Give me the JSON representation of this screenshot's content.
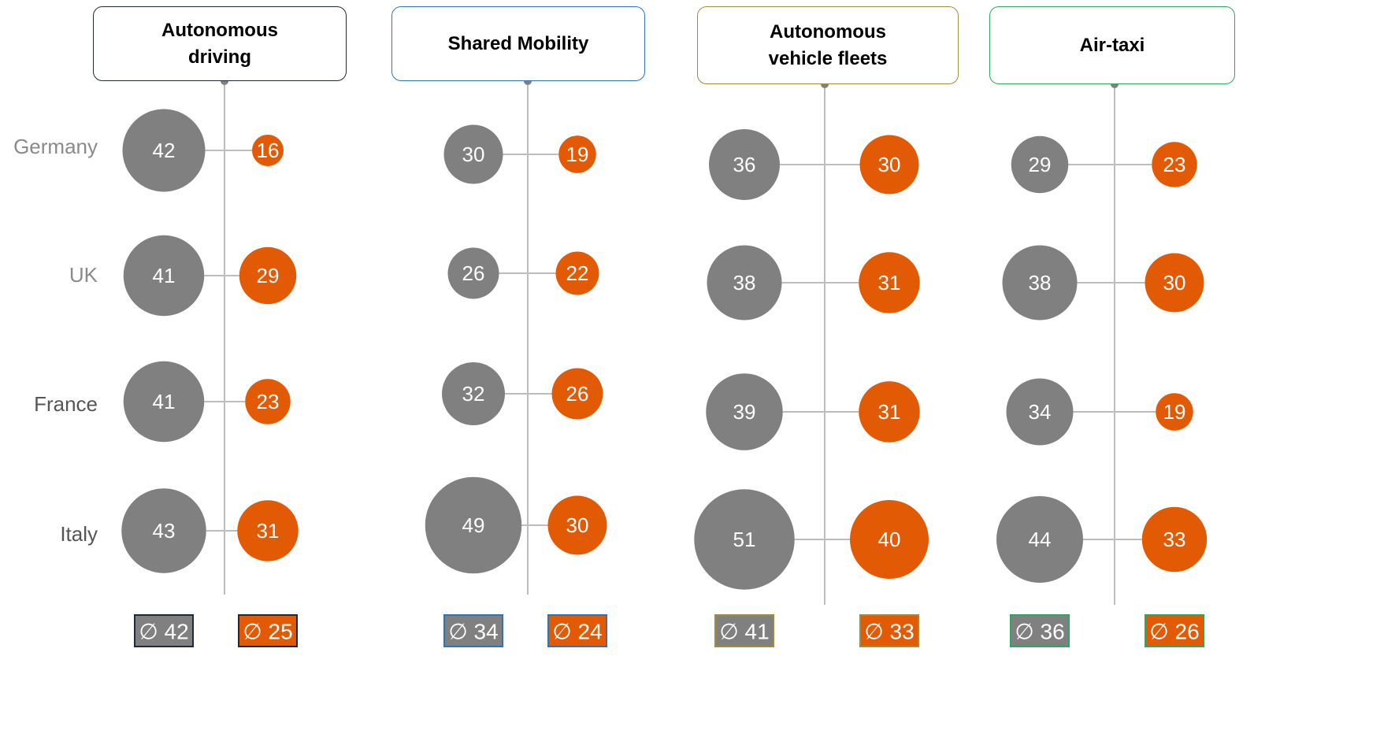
{
  "chart_data": {
    "type": "bubble",
    "categories": [
      "Germany",
      "UK",
      "France",
      "Italy"
    ],
    "panels": [
      {
        "title": "Autonomous driving",
        "color": "#1f2a38",
        "series": [
          {
            "color": "#808080",
            "values": [
              42,
              41,
              41,
              43
            ]
          },
          {
            "color": "#e35a05",
            "values": [
              16,
              29,
              23,
              31
            ]
          }
        ],
        "averages": [
          42,
          25
        ],
        "average_labels": [
          "∅ 42",
          "∅ 25"
        ]
      },
      {
        "title": "Shared Mobility",
        "color": "#2e75b6",
        "series": [
          {
            "color": "#808080",
            "values": [
              30,
              26,
              32,
              49
            ]
          },
          {
            "color": "#e35a05",
            "values": [
              19,
              22,
              26,
              30
            ]
          }
        ],
        "averages": [
          34,
          24
        ],
        "average_labels": [
          "∅ 34",
          "∅ 24"
        ]
      },
      {
        "title": "Autonomous vehicle fleets",
        "color": "#a08c3c",
        "series": [
          {
            "color": "#808080",
            "values": [
              36,
              38,
              39,
              51
            ]
          },
          {
            "color": "#e35a05",
            "values": [
              30,
              31,
              31,
              40
            ]
          }
        ],
        "averages": [
          41,
          33
        ],
        "average_labels": [
          "∅ 41",
          "∅ 33"
        ]
      },
      {
        "title": "Air-taxi",
        "color": "#2aa860",
        "series": [
          {
            "color": "#808080",
            "values": [
              29,
              38,
              34,
              44
            ]
          },
          {
            "color": "#e35a05",
            "values": [
              23,
              30,
              19,
              33
            ]
          }
        ],
        "averages": [
          36,
          26
        ],
        "average_labels": [
          "∅ 36",
          "∅ 26"
        ]
      }
    ]
  }
}
